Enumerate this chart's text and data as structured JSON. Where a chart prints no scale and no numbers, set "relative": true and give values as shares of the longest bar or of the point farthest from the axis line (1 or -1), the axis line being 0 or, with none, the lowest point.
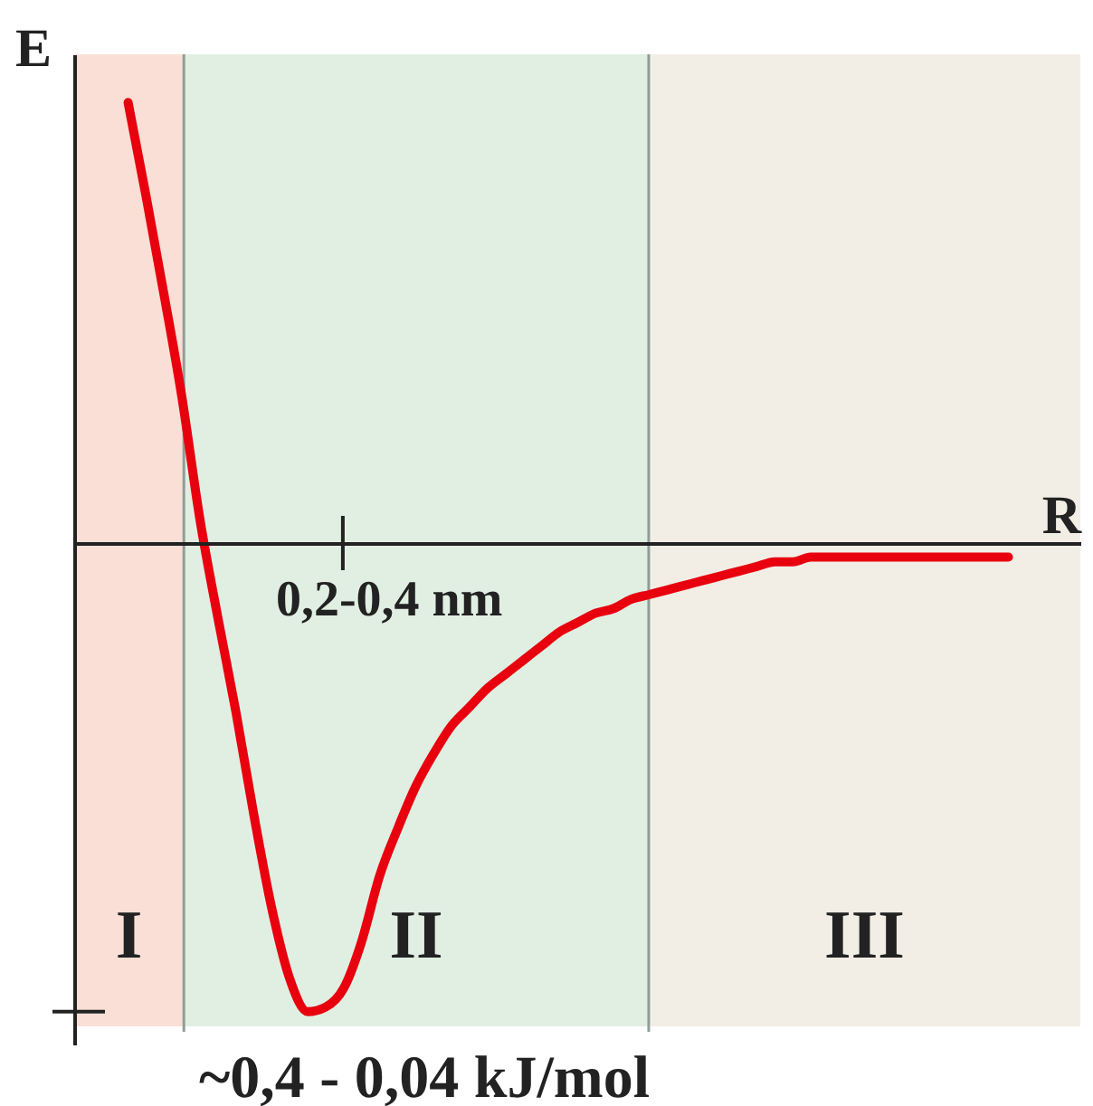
{
  "chart_data": {
    "type": "line",
    "relative": true,
    "xlabel": "R",
    "ylabel": "E",
    "categories": [
      null,
      null,
      null,
      null,
      null,
      null,
      null,
      null,
      null,
      null,
      null,
      null,
      null,
      null,
      null,
      null,
      null,
      null,
      null,
      null,
      null,
      null,
      null,
      null,
      null,
      null,
      null,
      null,
      null,
      null,
      null,
      null,
      null,
      null,
      null,
      null,
      null,
      null,
      null,
      null,
      null,
      null,
      null,
      null,
      null,
      null,
      null,
      null,
      null,
      null,
      null,
      null,
      null,
      null,
      null,
      null,
      null
    ],
    "series": [
      {
        "color": "#e8000e",
        "values": [
          null,
          null,
          null,
          0.94,
          0.74,
          0.53,
          0.31,
          0.05,
          -0.16,
          -0.36,
          -0.58,
          -0.78,
          -0.93,
          -1,
          -0.99,
          -0.95,
          -0.85,
          -0.71,
          -0.61,
          -0.52,
          -0.45,
          -0.39,
          -0.35,
          -0.31,
          -0.28,
          -0.25,
          -0.22,
          -0.19,
          -0.17,
          -0.15,
          -0.14,
          -0.12,
          -0.11,
          -0.1,
          -0.09,
          -0.08,
          -0.07,
          -0.06,
          -0.05,
          -0.04,
          -0.04,
          -0.03,
          -0.03,
          -0.03,
          -0.03,
          -0.03,
          -0.03,
          -0.03,
          -0.03,
          -0.03,
          -0.03,
          -0.03,
          -0.03,
          null,
          null,
          null,
          null
        ]
      }
    ],
    "annotations": [
      "0,2-0,4 nm",
      "I",
      "II",
      "III",
      "~0,4 - 0,04 kJ/mol"
    ]
  }
}
